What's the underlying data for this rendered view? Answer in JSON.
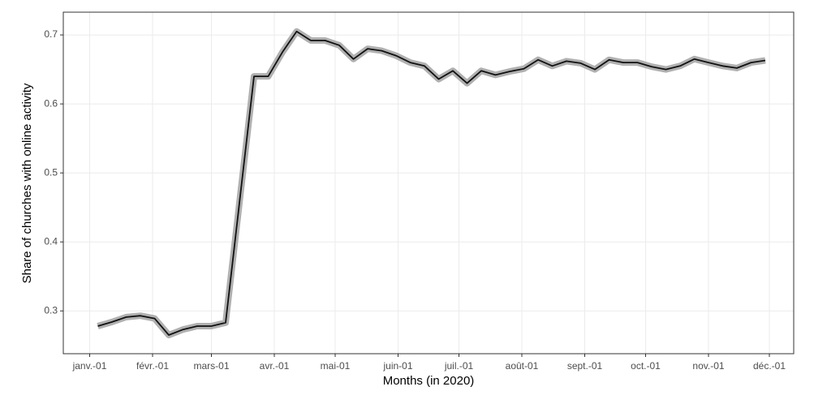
{
  "chart_data": {
    "type": "line",
    "x_label": "Months (in 2020)",
    "y_label": "Share of churches with online activity",
    "x": [
      4,
      11,
      18,
      25,
      32,
      39,
      46,
      53,
      60,
      67,
      81,
      88,
      95,
      102,
      109,
      116,
      123,
      130,
      137,
      144,
      151,
      158,
      165,
      172,
      179,
      186,
      193,
      200,
      207,
      214,
      221,
      228,
      235,
      242,
      249,
      256,
      263,
      270,
      277,
      284,
      291,
      298,
      305,
      312,
      319,
      326,
      333
    ],
    "series": [
      {
        "color": "#111111",
        "band_color": "#b0b0b0",
        "values": [
          0.278,
          0.284,
          0.291,
          0.293,
          0.289,
          0.265,
          0.273,
          0.278,
          0.278,
          0.283,
          0.64,
          0.64,
          0.675,
          0.705,
          0.692,
          0.692,
          0.685,
          0.665,
          0.68,
          0.677,
          0.67,
          0.66,
          0.655,
          0.636,
          0.648,
          0.63,
          0.648,
          0.642,
          0.647,
          0.651,
          0.664,
          0.655,
          0.662,
          0.659,
          0.65,
          0.664,
          0.66,
          0.66,
          0.654,
          0.65,
          0.655,
          0.665,
          0.66,
          0.655,
          0.652,
          0.66,
          0.663
        ]
      }
    ],
    "xlim": [
      -13,
      347
    ],
    "xticks": [
      {
        "value": 0,
        "label": "janv.-01"
      },
      {
        "value": 31,
        "label": "févr.-01"
      },
      {
        "value": 60,
        "label": "mars-01"
      },
      {
        "value": 91,
        "label": "avr.-01"
      },
      {
        "value": 121,
        "label": "mai-01"
      },
      {
        "value": 152,
        "label": "juin-01"
      },
      {
        "value": 182,
        "label": "juil.-01"
      },
      {
        "value": 213,
        "label": "août-01"
      },
      {
        "value": 244,
        "label": "sept.-01"
      },
      {
        "value": 274,
        "label": "oct.-01"
      },
      {
        "value": 305,
        "label": "nov.-01"
      },
      {
        "value": 335,
        "label": "déc.-01"
      }
    ],
    "ylim": [
      0.238,
      0.733
    ],
    "yticks": [
      0.3,
      0.4,
      0.5,
      0.6,
      0.7
    ],
    "grid": true
  }
}
